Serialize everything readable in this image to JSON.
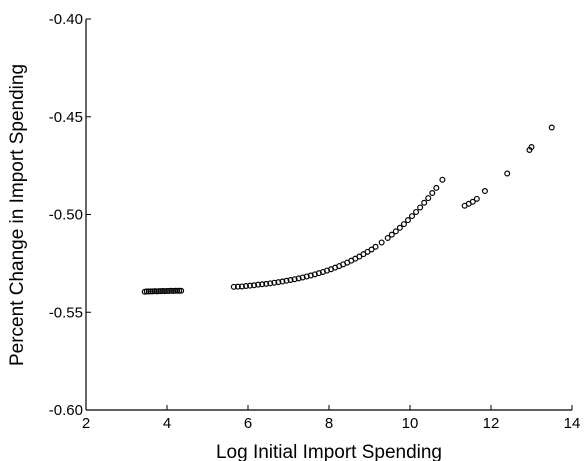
{
  "chart_data": {
    "type": "scatter",
    "title": "",
    "xlabel": "Log Initial Import Spending",
    "ylabel": "Percent Change in Import Spending",
    "xlim": [
      2,
      14
    ],
    "ylim": [
      -0.6,
      -0.4
    ],
    "xticks": [
      2,
      4,
      6,
      8,
      10,
      12,
      14
    ],
    "xtick_labels": [
      "2",
      "4",
      "6",
      "8",
      "10",
      "12",
      "14"
    ],
    "yticks": [
      -0.6,
      -0.55,
      -0.5,
      -0.45,
      -0.4
    ],
    "ytick_labels": [
      "-0.60",
      "-0.55",
      "-0.50",
      "-0.45",
      "-0.40"
    ],
    "grid": false,
    "marker": "open-circle",
    "color": "#000000",
    "series": [
      {
        "x": [
          3.45,
          3.5,
          3.55,
          3.6,
          3.65,
          3.7,
          3.75,
          3.8,
          3.85,
          3.9,
          3.95,
          4.0,
          4.05,
          4.1,
          4.15,
          4.2,
          4.25,
          4.3,
          4.35,
          5.65,
          5.75,
          5.85,
          5.95,
          6.05,
          6.15,
          6.25,
          6.35,
          6.45,
          6.55,
          6.65,
          6.75,
          6.85,
          6.95,
          7.05,
          7.15,
          7.25,
          7.35,
          7.45,
          7.55,
          7.65,
          7.75,
          7.85,
          7.95,
          8.05,
          8.15,
          8.25,
          8.35,
          8.45,
          8.55,
          8.65,
          8.75,
          8.85,
          8.95,
          9.05,
          9.15,
          9.3,
          9.45,
          9.55,
          9.65,
          9.75,
          9.85,
          9.95,
          10.05,
          10.15,
          10.25,
          10.35,
          10.45,
          10.55,
          10.65,
          10.8,
          11.35,
          11.45,
          11.55,
          11.65,
          11.85,
          12.4,
          12.95,
          13.0,
          13.5
        ],
        "y": [
          -0.5395,
          -0.5393,
          -0.5394,
          -0.5393,
          -0.5393,
          -0.5392,
          -0.5393,
          -0.5392,
          -0.5392,
          -0.5391,
          -0.5392,
          -0.5391,
          -0.5391,
          -0.539,
          -0.5391,
          -0.539,
          -0.539,
          -0.539,
          -0.539,
          -0.537,
          -0.5369,
          -0.5368,
          -0.5366,
          -0.5364,
          -0.5362,
          -0.5359,
          -0.5357,
          -0.5355,
          -0.5352,
          -0.5349,
          -0.5346,
          -0.5343,
          -0.5339,
          -0.5335,
          -0.5331,
          -0.5327,
          -0.5322,
          -0.5317,
          -0.5312,
          -0.5306,
          -0.53,
          -0.5294,
          -0.5287,
          -0.528,
          -0.5272,
          -0.5264,
          -0.5255,
          -0.5246,
          -0.5236,
          -0.5226,
          -0.5215,
          -0.5203,
          -0.5191,
          -0.5179,
          -0.5165,
          -0.5143,
          -0.512,
          -0.5103,
          -0.5086,
          -0.5068,
          -0.5049,
          -0.5029,
          -0.5008,
          -0.4987,
          -0.4964,
          -0.494,
          -0.4916,
          -0.489,
          -0.4864,
          -0.4822,
          -0.4955,
          -0.4945,
          -0.4935,
          -0.492,
          -0.488,
          -0.479,
          -0.467,
          -0.4655,
          -0.4555
        ]
      }
    ]
  }
}
